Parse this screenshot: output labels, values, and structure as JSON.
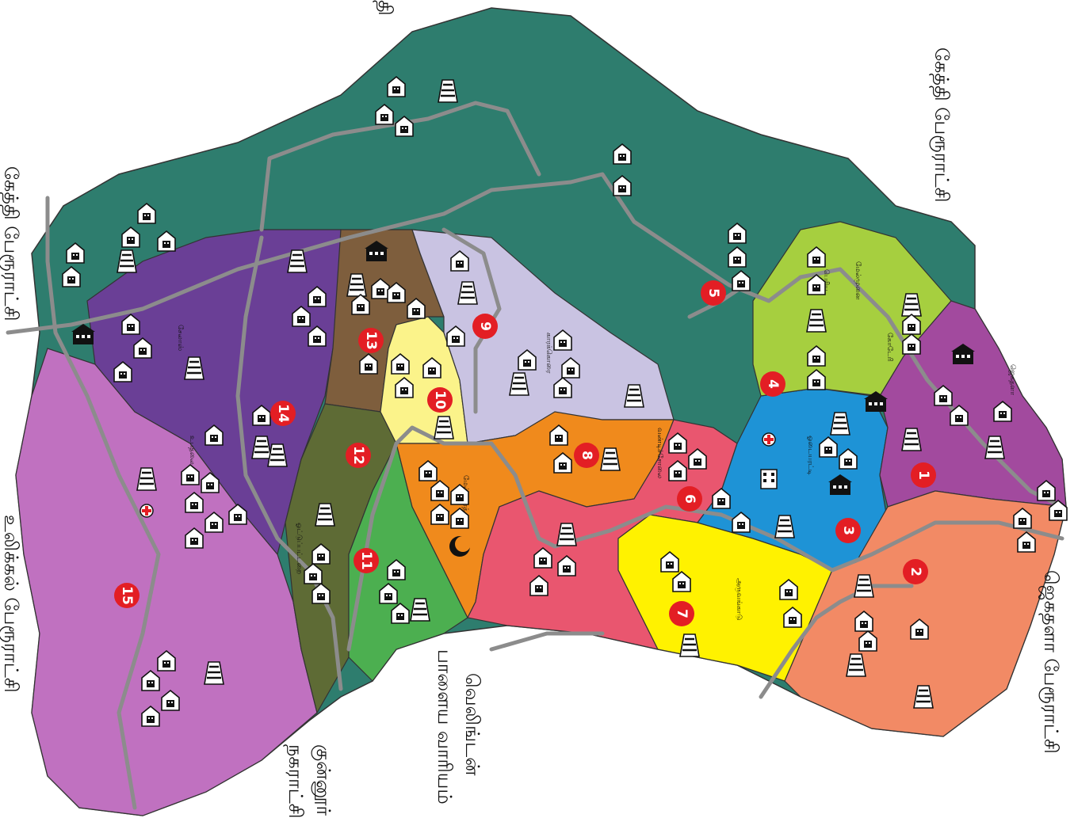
{
  "edge_labels": {
    "top": "கேத்தி பேரூராட்சி",
    "top_left": "கேத்தி பேரூராட்சி",
    "right": "ஜெகதளா பேரூராட்சி",
    "left": "உலிக்கல் பேரூராட்சி",
    "bottom_left_line1": "குன்னூர்",
    "bottom_left_line2": "நகராட்சி",
    "bottom_center_line1": "வெலிங்டன்",
    "bottom_center_line2": "பாளைய வாரியம்",
    "top_cut": "தி"
  },
  "wards": [
    {
      "number": "1",
      "color": "#a24a9e"
    },
    {
      "number": "2",
      "color": "#f28a65"
    },
    {
      "number": "3",
      "color": "#1e93d6"
    },
    {
      "number": "4",
      "color": "#a6cf3f"
    },
    {
      "number": "5",
      "color": "#2e7d6e"
    },
    {
      "number": "6",
      "color": "#e9566f"
    },
    {
      "number": "7",
      "color": "#fff200"
    },
    {
      "number": "8",
      "color": "#f08a1c"
    },
    {
      "number": "9",
      "color": "#c9c3e2"
    },
    {
      "number": "10",
      "color": "#fbf38a"
    },
    {
      "number": "11",
      "color": "#4caf50"
    },
    {
      "number": "12",
      "color": "#5e6b35"
    },
    {
      "number": "13",
      "color": "#7e5e3d"
    },
    {
      "number": "14",
      "color": "#6a3f96"
    },
    {
      "number": "15",
      "color": "#c071c0"
    }
  ],
  "ward_names": [
    "ஜெகதளா",
    "கோடேரி",
    "ஓடையரட்டி",
    "மேல்முனை",
    "பெரிய",
    "வண்டிச்சோலை",
    "அருவங்காடு",
    "காரக்கொரை",
    "மேல் பாரத்",
    "உபதலை",
    "சேலாஸ்",
    "ஓட்டுப்பட்டறை"
  ],
  "marker_colors": {
    "ward_badge": "#e31e24",
    "road": "#8c8c8c"
  },
  "icon_names": [
    "house-icon",
    "temple-icon",
    "school-icon",
    "hospital-icon",
    "church-icon",
    "mosque-icon"
  ]
}
